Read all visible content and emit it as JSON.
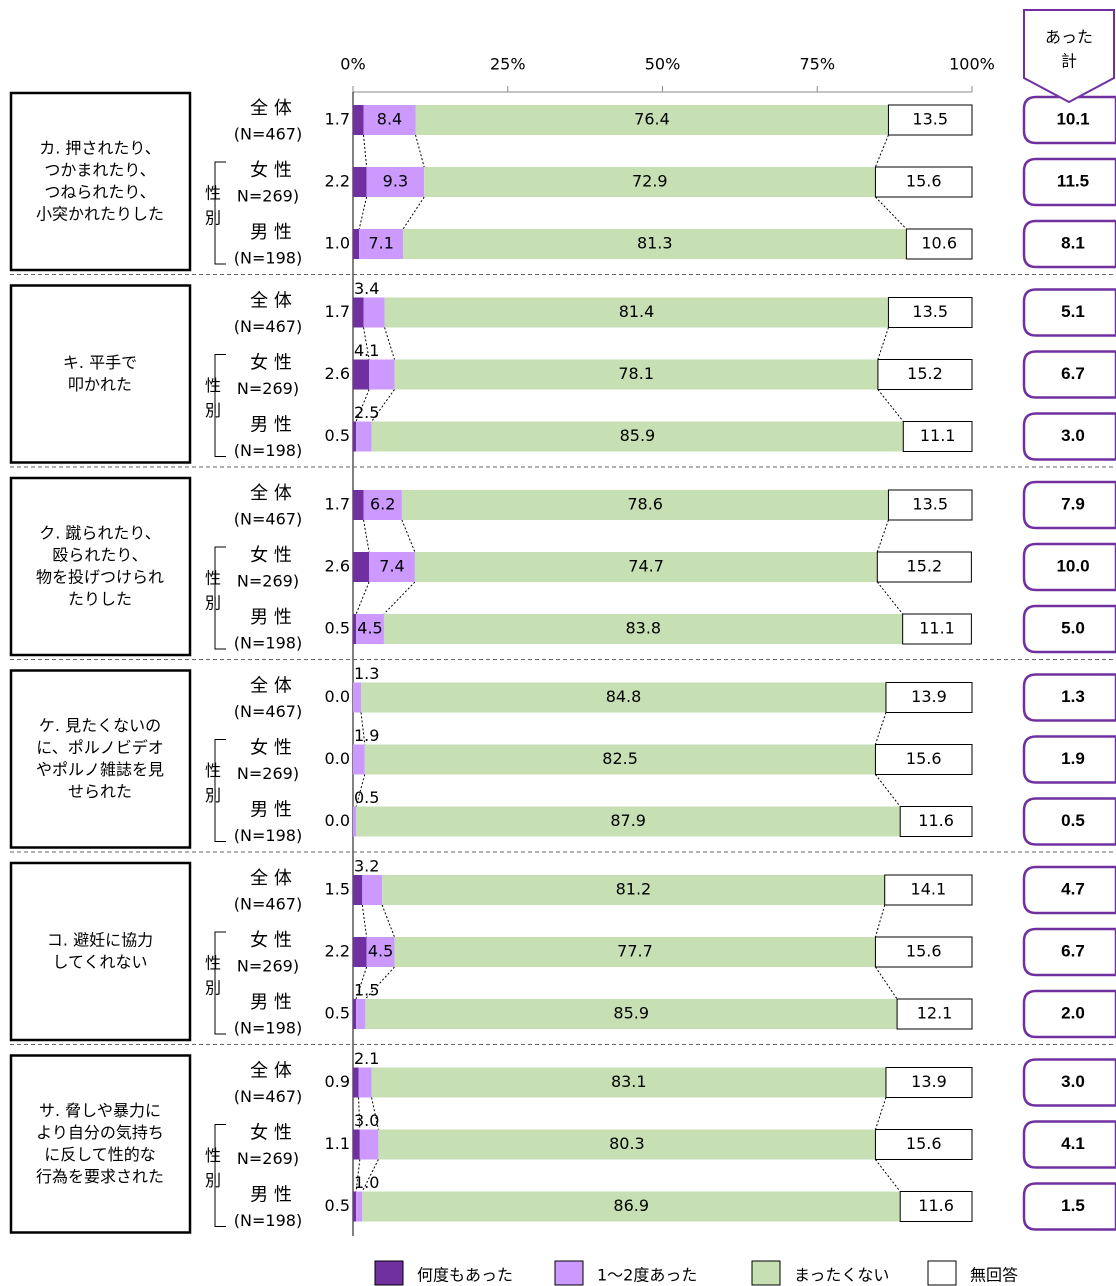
{
  "chart_data": {
    "type": "bar",
    "orientation": "horizontal",
    "stacked": true,
    "xlim": [
      0,
      100
    ],
    "xticks": [
      {
        "value": 0,
        "label": "0%"
      },
      {
        "value": 25,
        "label": "25%"
      },
      {
        "value": 50,
        "label": "50%"
      },
      {
        "value": 75,
        "label": "75%"
      },
      {
        "value": 100,
        "label": "100%"
      }
    ],
    "groups": [
      {
        "label": [
          "カ. 押されたり、",
          "つかまれたり、",
          "つねられたり、",
          "小突かれたりした"
        ]
      },
      {
        "label": [
          "キ. 平手で",
          "叩かれた"
        ]
      },
      {
        "label": [
          "ク. 蹴られたり、",
          "殴られたり、",
          "物を投げつけられ",
          "たりした"
        ]
      },
      {
        "label": [
          "ケ. 見たくないの",
          "に、ポルノビデオ",
          "やポルノ雑誌を見",
          "せられた"
        ]
      },
      {
        "label": [
          "コ. 避妊に協力",
          "してくれない"
        ]
      },
      {
        "label": [
          "サ. 脅しや暴力に",
          "より自分の気持ち",
          "に反して性的な",
          "行為を要求された"
        ]
      }
    ],
    "rows": [
      {
        "name": "全 体",
        "n": "(N=467)"
      },
      {
        "name": "女 性",
        "n": "N=269)"
      },
      {
        "name": "男 性",
        "n": "(N=198)"
      }
    ],
    "sex_label": [
      "性",
      "別"
    ],
    "series": [
      {
        "name": "何度もあった",
        "color": "#7030a0",
        "values": [
          1.7,
          2.2,
          1.0,
          1.7,
          2.6,
          0.5,
          1.7,
          2.6,
          0.5,
          0.0,
          0.0,
          0.0,
          1.5,
          2.2,
          0.5,
          0.9,
          1.1,
          0.5
        ],
        "value_labels": [
          "1.7",
          "2.2",
          "1.0",
          "1.7",
          "2.6",
          "0.5",
          "1.7",
          "2.6",
          "0.5",
          "0.0",
          "0.0",
          "0.0",
          "1.5",
          "2.2",
          "0.5",
          "0.9",
          "1.1",
          "0.5"
        ]
      },
      {
        "name": "1～2度あった",
        "color": "#cc99ff",
        "values": [
          8.4,
          9.3,
          7.1,
          3.4,
          4.1,
          2.5,
          6.2,
          7.4,
          4.5,
          1.3,
          1.9,
          0.5,
          3.2,
          4.5,
          1.5,
          2.1,
          3.0,
          1.0
        ],
        "value_labels": [
          "8.4",
          "9.3",
          "7.1",
          "3.4",
          "4.1",
          "2.5",
          "6.2",
          "7.4",
          "4.5",
          "1.3",
          "1.9",
          "0.5",
          "3.2",
          "4.5",
          "1.5",
          "2.1",
          "3.0",
          "1.0"
        ]
      },
      {
        "name": "まったくない",
        "color": "#c6e0b4",
        "values": [
          76.4,
          72.9,
          81.3,
          81.4,
          78.1,
          85.9,
          78.6,
          74.7,
          83.8,
          84.8,
          82.5,
          87.9,
          81.2,
          77.7,
          85.9,
          83.1,
          80.3,
          86.9
        ],
        "value_labels": [
          "76.4",
          "72.9",
          "81.3",
          "81.4",
          "78.1",
          "85.9",
          "78.6",
          "74.7",
          "83.8",
          "84.8",
          "82.5",
          "87.9",
          "81.2",
          "77.7",
          "85.9",
          "83.1",
          "80.3",
          "86.9"
        ]
      },
      {
        "name": "無回答",
        "color": "#ffffff",
        "values": [
          13.5,
          15.6,
          10.6,
          13.5,
          15.2,
          11.1,
          13.5,
          15.2,
          11.1,
          13.9,
          15.6,
          11.6,
          14.1,
          15.6,
          12.1,
          13.9,
          15.6,
          11.6
        ],
        "value_labels": [
          "13.5",
          "15.6",
          "10.6",
          "13.5",
          "15.2",
          "11.1",
          "13.5",
          "15.2",
          "11.1",
          "13.9",
          "15.6",
          "11.6",
          "14.1",
          "15.6",
          "12.1",
          "13.9",
          "15.6",
          "11.6"
        ]
      }
    ],
    "totals": {
      "name": [
        "あった",
        "計"
      ],
      "color": "#7030a0",
      "values": [
        10.1,
        11.5,
        8.1,
        5.1,
        6.7,
        3.0,
        7.9,
        10.0,
        5.0,
        1.3,
        1.9,
        0.5,
        4.7,
        6.7,
        2.0,
        3.0,
        4.1,
        1.5
      ],
      "value_labels": [
        "10.1",
        "11.5",
        "8.1",
        "5.1",
        "6.7",
        "3.0",
        "7.9",
        "10.0",
        "5.0",
        "1.3",
        "1.9",
        "0.5",
        "4.7",
        "6.7",
        "2.0",
        "3.0",
        "4.1",
        "1.5"
      ]
    }
  }
}
